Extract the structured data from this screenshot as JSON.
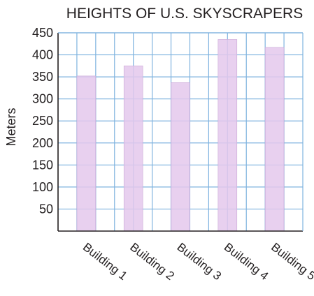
{
  "chart_data": {
    "type": "bar",
    "title": "HEIGHTS OF U.S. SKYSCRAPERS",
    "xlabel": "",
    "ylabel": "Meters",
    "categories": [
      "Building 1",
      "Building 2",
      "Building 3",
      "Building 4",
      "Building 5"
    ],
    "values": [
      352,
      375,
      337,
      435,
      417
    ],
    "ylim": [
      0,
      450
    ],
    "yticks": [
      "50",
      "100",
      "150",
      "200",
      "250",
      "300",
      "350",
      "400",
      "450"
    ],
    "grid": true,
    "colors": {
      "bar": "#e4c8ec",
      "bar_edge": "#c9a8d6",
      "grid": "#7fb3df",
      "axis": "#231f20"
    }
  }
}
